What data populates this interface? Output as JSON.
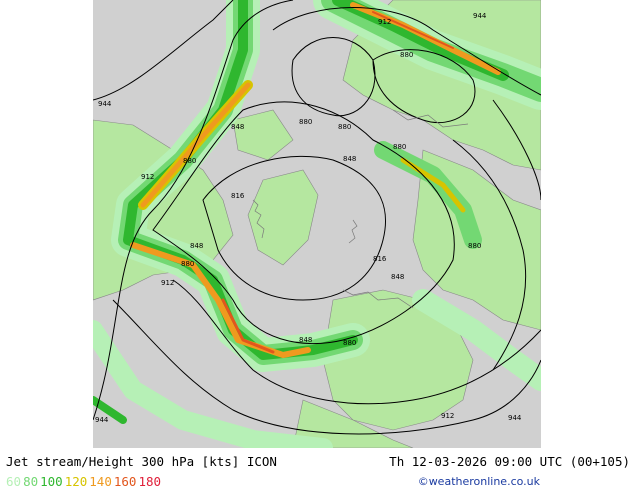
{
  "header": {
    "title": "Jet stream/Height 300 hPa [kts] ICON",
    "datetime": "Th 12-03-2026 09:00 UTC (00+105)"
  },
  "legend": {
    "levels": [
      {
        "label": "60",
        "color": "#b6f0b6"
      },
      {
        "label": "80",
        "color": "#73d873"
      },
      {
        "label": "100",
        "color": "#2fb72f"
      },
      {
        "label": "120",
        "color": "#d7c400"
      },
      {
        "label": "140",
        "color": "#ef9a1f"
      },
      {
        "label": "160",
        "color": "#e2561d"
      },
      {
        "label": "180",
        "color": "#e0203a"
      }
    ]
  },
  "credit": "©weatheronline.co.uk",
  "contour_labels": [
    "944",
    "912",
    "944",
    "880",
    "848",
    "880",
    "880",
    "880",
    "848",
    "880",
    "912",
    "816",
    "848",
    "880",
    "816",
    "880",
    "848",
    "912",
    "848",
    "880",
    "944",
    "912",
    "944"
  ]
}
